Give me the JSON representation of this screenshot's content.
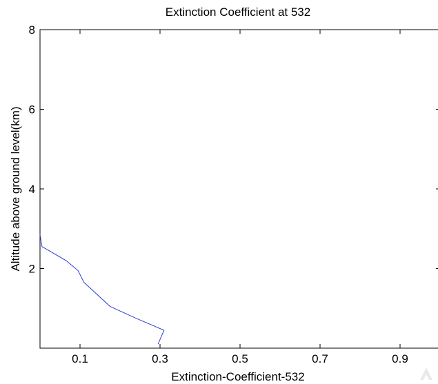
{
  "chart_data": {
    "type": "line",
    "title": "Extinction Coefficient at 532",
    "xlabel": "Extinction-Coefficient-532",
    "ylabel": "Altitude above ground level(km)",
    "xlim": [
      0.0,
      1.0
    ],
    "ylim": [
      0,
      8
    ],
    "xticks": [
      0.1,
      0.3,
      0.5,
      0.7,
      0.9
    ],
    "xtick_labels": [
      "0.1",
      "0.3",
      "0.5",
      "0.7",
      "0.9"
    ],
    "yticks": [
      2,
      4,
      6,
      8
    ],
    "ytick_labels": [
      "2",
      "4",
      "6",
      "8"
    ],
    "grid": false,
    "legend": "none",
    "series": [
      {
        "color": "#2b3bd8",
        "x": [
          0.295,
          0.31,
          0.24,
          0.175,
          0.11,
          0.095,
          0.065,
          0.005,
          0.0
        ],
        "y": [
          0.1,
          0.45,
          0.75,
          1.05,
          1.65,
          1.95,
          2.2,
          2.55,
          2.85
        ]
      }
    ]
  }
}
